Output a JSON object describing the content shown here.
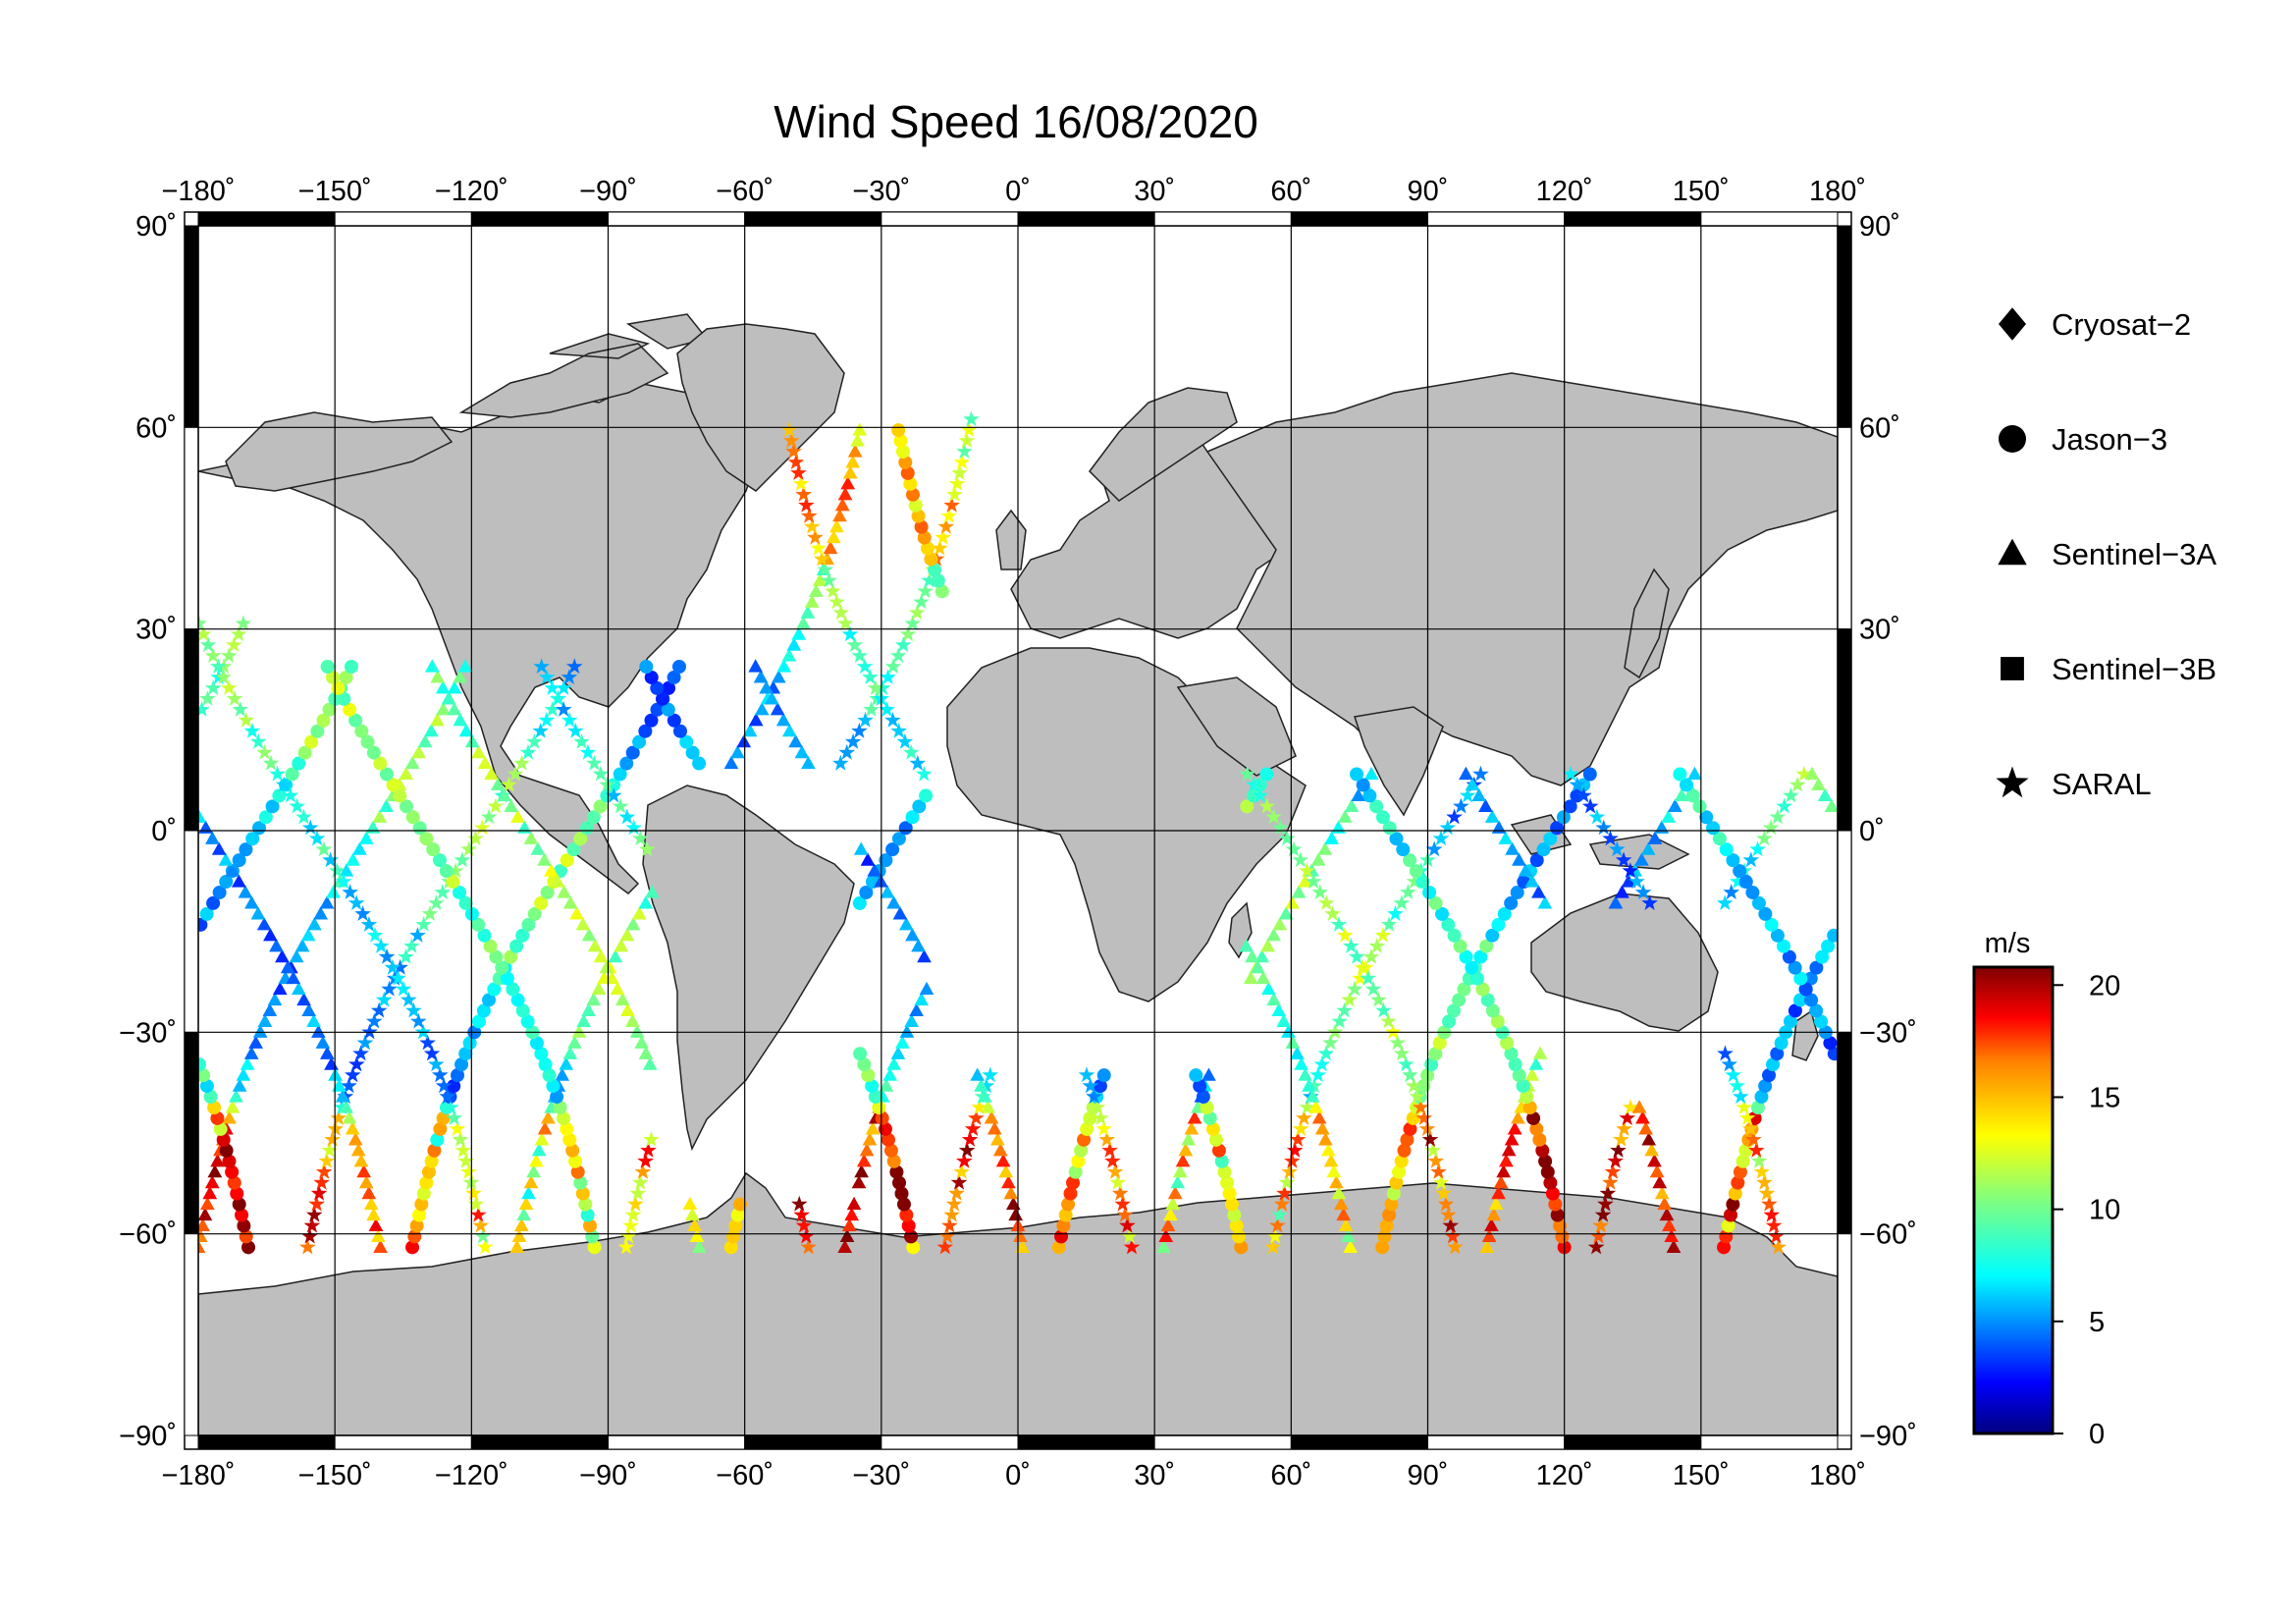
{
  "title": "Wind Speed 16/08/2020",
  "map": {
    "projection": "equirectangular",
    "lon_range": [
      -180,
      180
    ],
    "lat_range": [
      -90,
      90
    ],
    "grid": true,
    "frame": "alternating black/white 30° segments",
    "land_color": "#bebebe",
    "ocean_color": "#ffffff"
  },
  "lon_ticks": [
    {
      "value": -180,
      "label": "−180˚"
    },
    {
      "value": -150,
      "label": "−150˚"
    },
    {
      "value": -120,
      "label": "−120˚"
    },
    {
      "value": -90,
      "label": "−90˚"
    },
    {
      "value": -60,
      "label": "−60˚"
    },
    {
      "value": -30,
      "label": "−30˚"
    },
    {
      "value": 0,
      "label": "0˚"
    },
    {
      "value": 30,
      "label": "30˚"
    },
    {
      "value": 60,
      "label": "60˚"
    },
    {
      "value": 90,
      "label": "90˚"
    },
    {
      "value": 120,
      "label": "120˚"
    },
    {
      "value": 150,
      "label": "150˚"
    },
    {
      "value": 180,
      "label": "180˚"
    }
  ],
  "lat_ticks": [
    {
      "value": 90,
      "label": "90˚"
    },
    {
      "value": 60,
      "label": "60˚"
    },
    {
      "value": 30,
      "label": "30˚"
    },
    {
      "value": 0,
      "label": "0˚"
    },
    {
      "value": -30,
      "label": "−30˚"
    },
    {
      "value": -60,
      "label": "−60˚"
    },
    {
      "value": -90,
      "label": "−90˚"
    }
  ],
  "legend": {
    "placement": "right",
    "items": [
      {
        "label": "Cryosat−2",
        "symbol": "diamond"
      },
      {
        "label": "Jason−3",
        "symbol": "circle"
      },
      {
        "label": "Sentinel−3A",
        "symbol": "triangle"
      },
      {
        "label": "Sentinel−3B",
        "symbol": "square"
      },
      {
        "label": "SARAL",
        "symbol": "star"
      }
    ]
  },
  "colorbar": {
    "unit": "m/s",
    "min": 0,
    "max": 20.8,
    "ticks": [
      {
        "value": 0,
        "label": "0"
      },
      {
        "value": 5,
        "label": "5"
      },
      {
        "value": 10,
        "label": "10"
      },
      {
        "value": 15,
        "label": "15"
      },
      {
        "value": 20,
        "label": "20"
      }
    ],
    "colormap": "jet",
    "colors": [
      "#00007f",
      "#0000ff",
      "#007fff",
      "#00ffff",
      "#7fff7f",
      "#ffff00",
      "#ff7f00",
      "#ff0000",
      "#7f0000"
    ]
  },
  "satellite_tracks": {
    "ascending_nodes": [
      -167,
      -142,
      -118,
      -95,
      -72,
      -48,
      -25,
      0,
      22,
      47,
      70,
      94,
      118,
      141,
      165
    ],
    "descending_nodes": [
      -178,
      -155,
      -131,
      -108,
      -84,
      -61,
      -37,
      -13,
      11,
      35,
      58,
      82,
      106,
      129,
      153
    ]
  }
}
